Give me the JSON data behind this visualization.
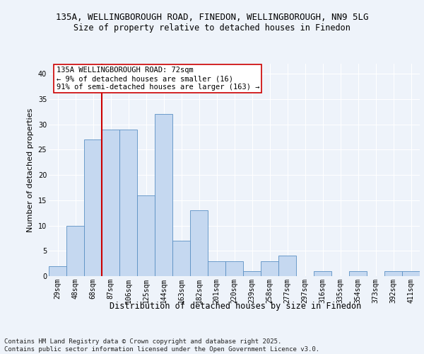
{
  "title_line1": "135A, WELLINGBOROUGH ROAD, FINEDON, WELLINGBOROUGH, NN9 5LG",
  "title_line2": "Size of property relative to detached houses in Finedon",
  "xlabel": "Distribution of detached houses by size in Finedon",
  "ylabel": "Number of detached properties",
  "categories": [
    "29sqm",
    "48sqm",
    "68sqm",
    "87sqm",
    "106sqm",
    "125sqm",
    "144sqm",
    "163sqm",
    "182sqm",
    "201sqm",
    "220sqm",
    "239sqm",
    "258sqm",
    "277sqm",
    "297sqm",
    "316sqm",
    "335sqm",
    "354sqm",
    "373sqm",
    "392sqm",
    "411sqm"
  ],
  "values": [
    2,
    10,
    27,
    29,
    29,
    16,
    32,
    7,
    13,
    3,
    3,
    1,
    3,
    4,
    0,
    1,
    0,
    1,
    0,
    1,
    1
  ],
  "bar_color": "#c5d8f0",
  "bar_edge_color": "#5a8fc3",
  "vline_x_index": 2,
  "vline_color": "#cc0000",
  "annotation_text": "135A WELLINGBOROUGH ROAD: 72sqm\n← 9% of detached houses are smaller (16)\n91% of semi-detached houses are larger (163) →",
  "annotation_box_color": "#ffffff",
  "annotation_box_edge": "#cc0000",
  "ylim": [
    0,
    42
  ],
  "yticks": [
    0,
    5,
    10,
    15,
    20,
    25,
    30,
    35,
    40
  ],
  "footer": "Contains HM Land Registry data © Crown copyright and database right 2025.\nContains public sector information licensed under the Open Government Licence v3.0.",
  "bg_color": "#eef3fa",
  "plot_bg_color": "#eef3fa",
  "grid_color": "#ffffff",
  "title_fontsize": 9,
  "subtitle_fontsize": 8.5,
  "ylabel_fontsize": 8,
  "xlabel_fontsize": 8.5,
  "tick_fontsize": 7,
  "annotation_fontsize": 7.5,
  "footer_fontsize": 6.5
}
